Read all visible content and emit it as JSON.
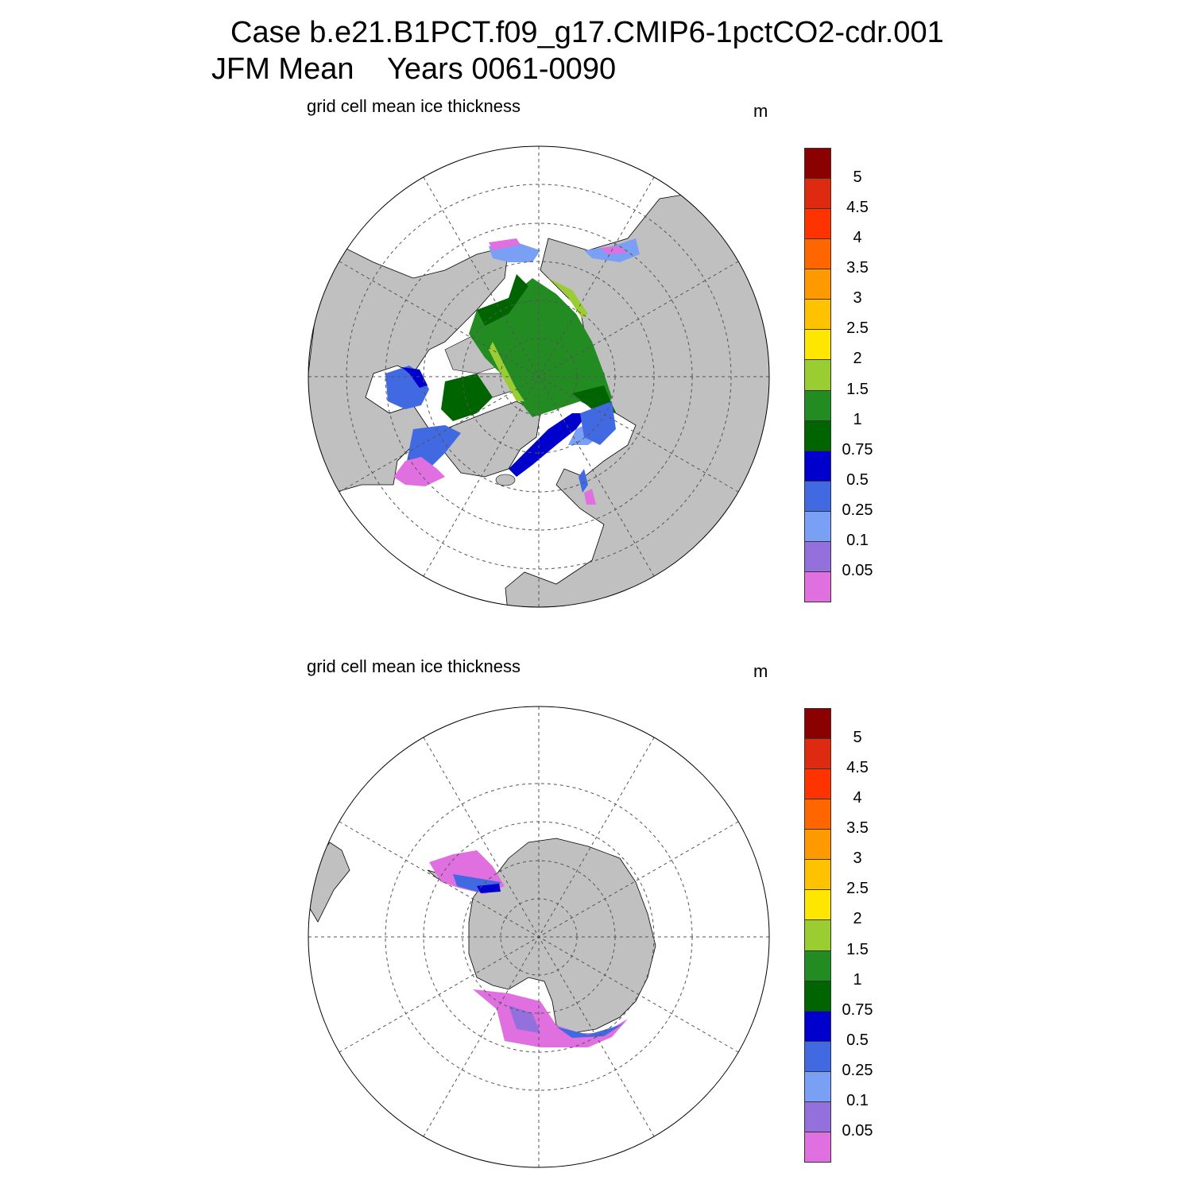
{
  "title": {
    "line1": "Case b.e21.B1PCT.f09_g17.CMIP6-1pctCO2-cdr.001",
    "line2": "JFM Mean    Years 0061-0090"
  },
  "panels": [
    {
      "name": "north",
      "variable": "grid cell mean ice thickness",
      "units": "m",
      "hemisphere": "Northern"
    },
    {
      "name": "south",
      "variable": "grid cell mean ice thickness",
      "units": "m",
      "hemisphere": "Southern"
    }
  ],
  "colorbar": {
    "levels": [
      "0.05",
      "0.1",
      "0.25",
      "0.5",
      "0.75",
      "1",
      "1.5",
      "2",
      "2.5",
      "3",
      "3.5",
      "4",
      "4.5",
      "5"
    ],
    "colors": [
      "#e070e0",
      "#9370db",
      "#7aa0f5",
      "#4169e1",
      "#0000cd",
      "#006400",
      "#228b22",
      "#9acd32",
      "#ffe600",
      "#ffc200",
      "#ff9900",
      "#ff6600",
      "#ff3300",
      "#dd2a10",
      "#8b0000"
    ]
  },
  "map_colors": {
    "land": "#c0c0c0",
    "ocean": "#ffffff",
    "grid": "#555555"
  }
}
